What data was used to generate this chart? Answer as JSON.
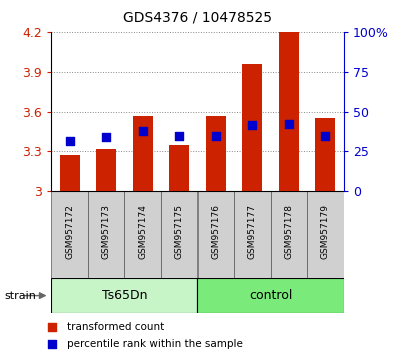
{
  "title": "GDS4376 / 10478525",
  "samples": [
    "GSM957172",
    "GSM957173",
    "GSM957174",
    "GSM957175",
    "GSM957176",
    "GSM957177",
    "GSM957178",
    "GSM957179"
  ],
  "red_values": [
    3.275,
    3.32,
    3.565,
    3.345,
    3.565,
    3.96,
    4.2,
    3.55
  ],
  "blue_values": [
    3.375,
    3.41,
    3.455,
    3.415,
    3.415,
    3.495,
    3.505,
    3.415
  ],
  "ymin": 3.0,
  "ymax": 4.2,
  "yticks": [
    3.0,
    3.3,
    3.6,
    3.9,
    4.2
  ],
  "ytick_labels": [
    "3",
    "3.3",
    "3.6",
    "3.9",
    "4.2"
  ],
  "y2ticks": [
    0,
    25,
    50,
    75,
    100
  ],
  "y2tick_labels": [
    "0",
    "25",
    "50",
    "75",
    "100%"
  ],
  "group1_label": "Ts65Dn",
  "group2_label": "control",
  "group1_n": 4,
  "group2_n": 4,
  "group1_color": "#c8f5c8",
  "group2_color": "#7aeb7a",
  "bar_color": "#cc2200",
  "dot_color": "#0000cc",
  "label_color_red": "#cc2200",
  "label_color_blue": "#0000cc",
  "legend_red": "transformed count",
  "legend_blue": "percentile rank within the sample",
  "strain_label": "strain",
  "bar_width": 0.55,
  "dot_size": 40,
  "sample_box_color": "#d0d0d0",
  "bg_color": "#ffffff"
}
